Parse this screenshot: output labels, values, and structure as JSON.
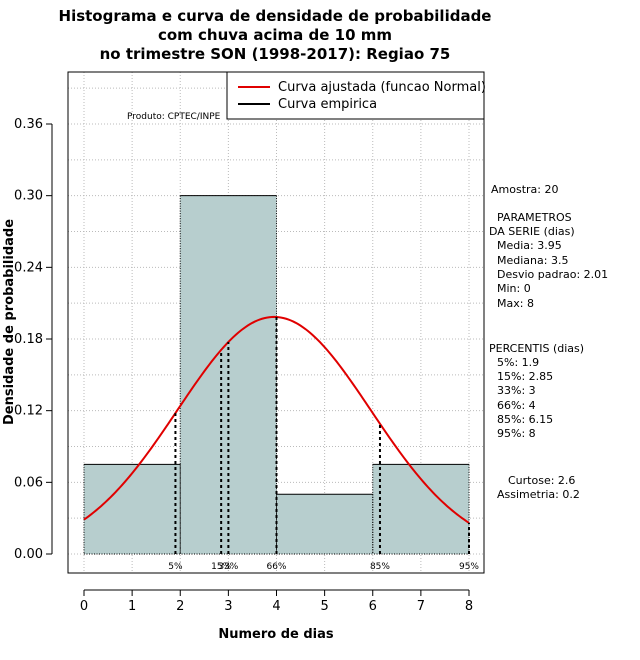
{
  "chart_data": {
    "type": "histogram",
    "title_lines": [
      "Histograma e curva de densidade de probabilidade",
      "com chuva acima de 10 mm",
      "no trimestre SON (1998-2017): Regiao 75"
    ],
    "xlabel": "Numero de dias",
    "ylabel": "Densidade de probabilidade",
    "xlim": [
      0,
      8
    ],
    "ylim": [
      0,
      0.36
    ],
    "x_ticks": [
      "0",
      "1",
      "2",
      "3",
      "4",
      "5",
      "6",
      "7",
      "8"
    ],
    "y_ticks": [
      "0.00",
      "0.06",
      "0.12",
      "0.18",
      "0.24",
      "0.30",
      "0.36"
    ],
    "bins": [
      {
        "from": 0,
        "to": 2,
        "density": 0.075
      },
      {
        "from": 2,
        "to": 4,
        "density": 0.3
      },
      {
        "from": 4,
        "to": 6,
        "density": 0.05
      },
      {
        "from": 6,
        "to": 8,
        "density": 0.075
      }
    ],
    "normal_curve": {
      "mean": 3.95,
      "sd": 2.01,
      "x_from": 0,
      "x_to": 8
    },
    "percentile_markers": [
      {
        "label": "5%",
        "x": 1.9
      },
      {
        "label": "15%",
        "x": 2.85
      },
      {
        "label": "33%",
        "x": 3
      },
      {
        "label": "66%",
        "x": 4
      },
      {
        "label": "85%",
        "x": 6.15
      },
      {
        "label": "95%",
        "x": 8
      }
    ],
    "legend": {
      "position": "top-right",
      "entries": [
        {
          "label": "Curva ajustada (funcao Normal)",
          "color": "#e00000"
        },
        {
          "label": "Curva empirica",
          "color": "#000000"
        }
      ]
    },
    "product_label": "Produto: CPTEC/INPE",
    "colors": {
      "bar_fill": "#b7cece",
      "curve": "#e00000",
      "grid": "#bbbbbb"
    }
  },
  "stats_panel": {
    "sample": "Amostra: 20",
    "params_title_1": "PARAMETROS",
    "params_title_2": "DA SERIE (dias)",
    "media": "Media: 3.95",
    "mediana": "Mediana: 3.5",
    "desvio": "Desvio padrao: 2.01",
    "min": "Min: 0",
    "max": "Max: 8",
    "percentis_title": "PERCENTIS (dias)",
    "p5": "5%: 1.9",
    "p15": "15%: 2.85",
    "p33": "33%: 3",
    "p66": "66%: 4",
    "p85": "85%: 6.15",
    "p95": "95%: 8",
    "curtose": "Curtose: 2.6",
    "assimetria": "Assimetria: 0.2"
  }
}
